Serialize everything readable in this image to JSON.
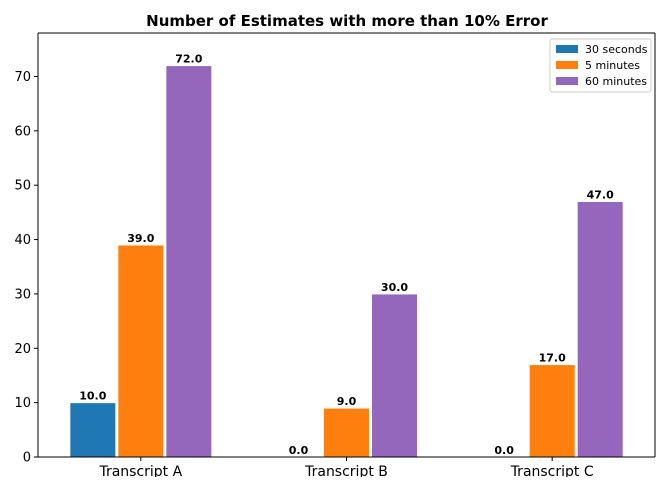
{
  "chart_data": {
    "type": "bar",
    "title": "Number of Estimates with more than 10% Error",
    "xlabel": "",
    "ylabel": "",
    "categories": [
      "Transcript A",
      "Transcript B",
      "Transcript C"
    ],
    "series": [
      {
        "name": "30 seconds",
        "color": "#1f77b4",
        "values": [
          10.0,
          0.0,
          0.0
        ],
        "labels": [
          "10.0",
          "0.0",
          "0.0"
        ]
      },
      {
        "name": "5 minutes",
        "color": "#ff7f0e",
        "values": [
          39.0,
          9.0,
          17.0
        ],
        "labels": [
          "39.0",
          "9.0",
          "17.0"
        ]
      },
      {
        "name": "60 minutes",
        "color": "#9467bd",
        "values": [
          72.0,
          30.0,
          47.0
        ],
        "labels": [
          "72.0",
          "30.0",
          "47.0"
        ]
      }
    ],
    "ylim": [
      0,
      78
    ],
    "yticks": [
      0,
      10,
      20,
      30,
      40,
      50,
      60,
      70
    ],
    "ytick_labels": [
      "0",
      "10",
      "20",
      "30",
      "40",
      "50",
      "60",
      "70"
    ],
    "grid": false,
    "legend_position": "upper right"
  }
}
